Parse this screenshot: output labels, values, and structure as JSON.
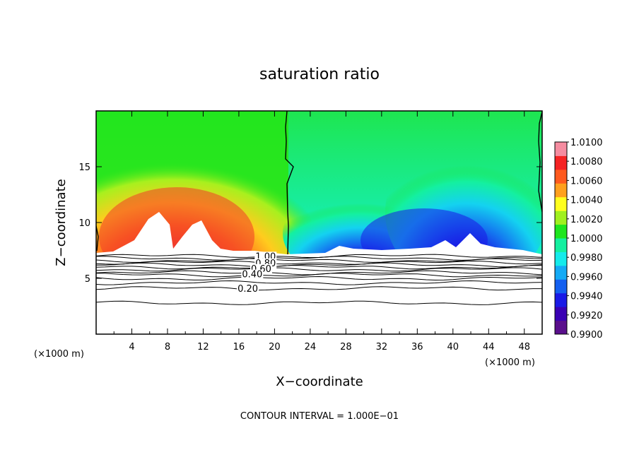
{
  "chart_data": {
    "type": "heatmap",
    "title": "saturation ratio",
    "xlabel": "X−coordinate",
    "ylabel": "Z−coordinate",
    "x_unit_label": "(×1000 m)",
    "x_unit_label_right": "(×1000 m)",
    "x_ticks": [
      4,
      8,
      12,
      16,
      20,
      24,
      28,
      32,
      36,
      40,
      44,
      48
    ],
    "y_ticks": [
      5,
      10,
      15
    ],
    "xlim": [
      0,
      50
    ],
    "ylim": [
      0,
      20
    ],
    "footer": "CONTOUR INTERVAL = 1.000E−01",
    "colorbar": {
      "labels": [
        "1.0100",
        "1.0080",
        "1.0060",
        "1.0040",
        "1.0020",
        "1.0000",
        "0.9980",
        "0.9960",
        "0.9940",
        "0.9920",
        "0.9900"
      ],
      "range": [
        0.99,
        1.01
      ]
    },
    "contours": {
      "terrain_top_z": 7.0,
      "labels": [
        {
          "text": "1.00",
          "x": 19.0,
          "z": 7.0
        },
        {
          "text": "0.80",
          "x": 19.0,
          "z": 6.4
        },
        {
          "text": "0.60",
          "x": 18.5,
          "z": 5.9
        },
        {
          "text": "0.40",
          "x": 17.5,
          "z": 5.4
        },
        {
          "text": "0.20",
          "x": 17.0,
          "z": 4.1
        }
      ]
    }
  },
  "colors": {
    "frame": "#000000",
    "background": "#ffffff",
    "palette": [
      "#5a0f8c",
      "#3a00b4",
      "#1a1ae6",
      "#1460f0",
      "#14aaf5",
      "#14ebeb",
      "#14f0a0",
      "#1ee61e",
      "#a0f01e",
      "#ffff1e",
      "#ffa01e",
      "#ff5a1e",
      "#f52323",
      "#f58ca0"
    ]
  }
}
